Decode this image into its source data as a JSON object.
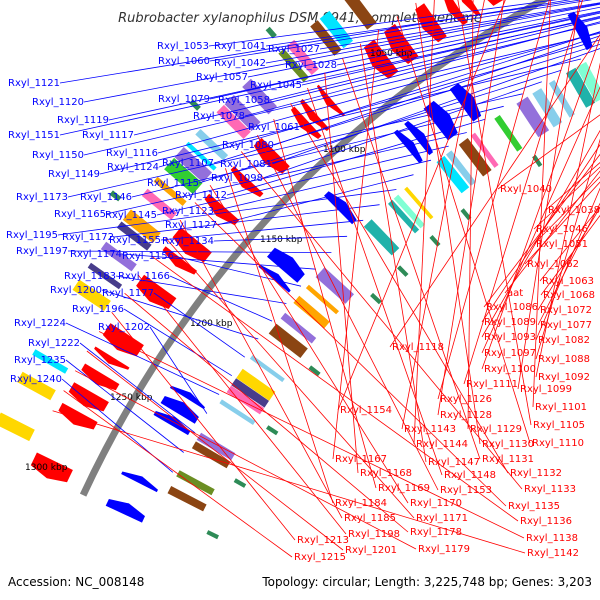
{
  "title": "Rubrobacter xylanophilus DSM 9941, complete genome",
  "accession": "Accession: NC_008148",
  "summary": "Topology: circular; Length: 3,225,748 bp; Genes: 3,203",
  "colors": {
    "forward_strand": "#0000ff",
    "reverse_strand": "#ff0000",
    "backbone": "#808080",
    "rna_feature": "#2e8b57",
    "cds_palette": [
      "#00e5ff",
      "#7fffd4",
      "#9370db",
      "#ff69b4",
      "#ffa500",
      "#6b8e23",
      "#483d8b",
      "#20b2aa",
      "#ffd700",
      "#87ceeb",
      "#8b4513",
      "#32cd32"
    ]
  },
  "ticks": [
    "1050 kbp",
    "1100 kbp",
    "1150 kbp",
    "1200 kbp",
    "1250 kbp",
    "1300 kbp"
  ],
  "forward_labels": [
    "Rxyl_1053",
    "Rxyl_1041",
    "Rxyl_1027",
    "Rxyl_1060",
    "Rxyl_1042",
    "Rxyl_1028",
    "Rxyl_1057",
    "Rxyl_1045",
    "Rxyl_1121",
    "Rxyl_1079",
    "Rxyl_1058",
    "Rxyl_1120",
    "Rxyl_1078",
    "Rxyl_1119",
    "Rxyl_1061",
    "Rxyl_1151",
    "Rxyl_1117",
    "Rxyl_1080",
    "Rxyl_1116",
    "Rxyl_1150",
    "Rxyl_1124",
    "Rxyl_1107",
    "Rxyl_1081",
    "Rxyl_1149",
    "Rxyl_1115",
    "Rxyl_1098",
    "Rxyl_1173",
    "Rxyl_1146",
    "Rxyl_1112",
    "Rxyl_1165",
    "Rxyl_1145",
    "Rxyl_1123",
    "Rxyl_1127",
    "Rxyl_1195",
    "Rxyl_1172",
    "Rxyl_1155",
    "Rxyl_1134",
    "Rxyl_1197",
    "Rxyl_1174",
    "Rxyl_1156",
    "Rxyl_1183",
    "Rxyl_1166",
    "Rxyl_1200",
    "Rxyl_1177",
    "Rxyl_1196",
    "Rxyl_1224",
    "Rxyl_1202",
    "Rxyl_1222",
    "Rxyl_1235",
    "Rxyl_1240"
  ],
  "reverse_labels": [
    "Rxyl_1040",
    "Rxyl_1038",
    "Rxyl_1046",
    "Rxyl_1051",
    "Rxyl_1062",
    "Rxyl_1063",
    "Rxyl_1068",
    "aat",
    "Rxyl_1086",
    "Rxyl_1072",
    "Rxyl_1089",
    "Rxyl_1077",
    "Rxyl_1093",
    "Rxyl_1082",
    "Rxyl_1118",
    "Rxyl_1097",
    "Rxyl_1088",
    "Rxyl_1100",
    "Rxyl_1092",
    "Rxyl_1111",
    "Rxyl_1099",
    "Rxyl_1126",
    "Rxyl_1101",
    "Rxyl_1154",
    "Rxyl_1128",
    "Rxyl_1143",
    "Rxyl_1129",
    "Rxyl_1105",
    "Rxyl_1144",
    "Rxyl_1130",
    "Rxyl_1110",
    "Rxyl_1167",
    "Rxyl_1147",
    "Rxyl_1131",
    "Rxyl_1168",
    "Rxyl_1148",
    "Rxyl_1132",
    "Rxyl_1169",
    "Rxyl_1153",
    "Rxyl_1133",
    "Rxyl_1184",
    "Rxyl_1170",
    "Rxyl_1135",
    "Rxyl_1185",
    "Rxyl_1171",
    "Rxyl_1136",
    "Rxyl_1198",
    "Rxyl_1178",
    "Rxyl_1213",
    "Rxyl_1138",
    "Rxyl_1201",
    "Rxyl_1179",
    "Rxyl_1215",
    "Rxyl_1142"
  ]
}
